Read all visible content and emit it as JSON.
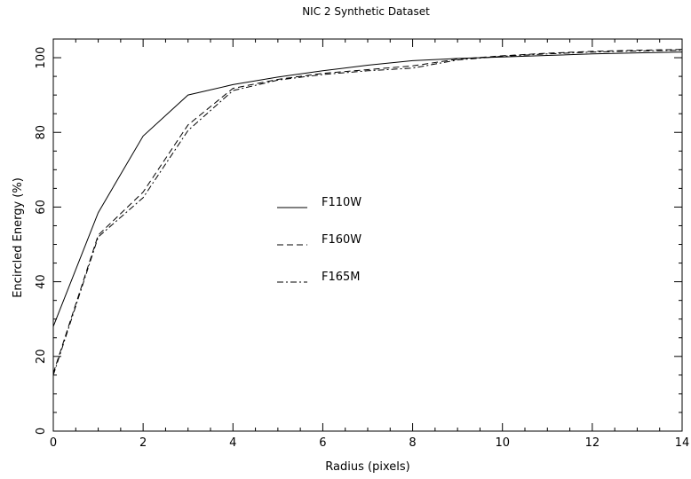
{
  "chart_data": {
    "type": "line",
    "title": "NIC 2 Synthetic Dataset",
    "xlabel": "Radius (pixels)",
    "ylabel": "Encircled Energy (%)",
    "xlim": [
      0,
      14
    ],
    "ylim": [
      0,
      105
    ],
    "xticks": [
      0,
      2,
      4,
      6,
      8,
      10,
      12,
      14
    ],
    "yticks": [
      0,
      20,
      40,
      60,
      80,
      100
    ],
    "grid": false,
    "legend_position": "center-left",
    "series": [
      {
        "name": "F110W",
        "style": "solid",
        "x": [
          0,
          1,
          2,
          3,
          4,
          5,
          6,
          7,
          8,
          9,
          10,
          11,
          12,
          13,
          14
        ],
        "y": [
          28,
          58.5,
          79,
          90,
          92.8,
          94.8,
          96.5,
          98,
          99.2,
          99.8,
          100.2,
          100.6,
          101,
          101.3,
          101.5
        ]
      },
      {
        "name": "F160W",
        "style": "dashed",
        "x": [
          0,
          1,
          2,
          3,
          4,
          5,
          6,
          7,
          8,
          9,
          10,
          11,
          12,
          13,
          14
        ],
        "y": [
          15.5,
          52.5,
          64,
          82,
          91.8,
          94.2,
          95.8,
          96.8,
          97.8,
          99.6,
          100.5,
          101.2,
          101.7,
          102,
          102.2
        ]
      },
      {
        "name": "F165M",
        "style": "dashdot",
        "x": [
          0,
          1,
          2,
          3,
          4,
          5,
          6,
          7,
          8,
          9,
          10,
          11,
          12,
          13,
          14
        ],
        "y": [
          15,
          52,
          62.5,
          80.5,
          91.2,
          94,
          95.5,
          96.5,
          97.2,
          99.4,
          100.4,
          101,
          101.5,
          101.8,
          102
        ]
      }
    ]
  }
}
